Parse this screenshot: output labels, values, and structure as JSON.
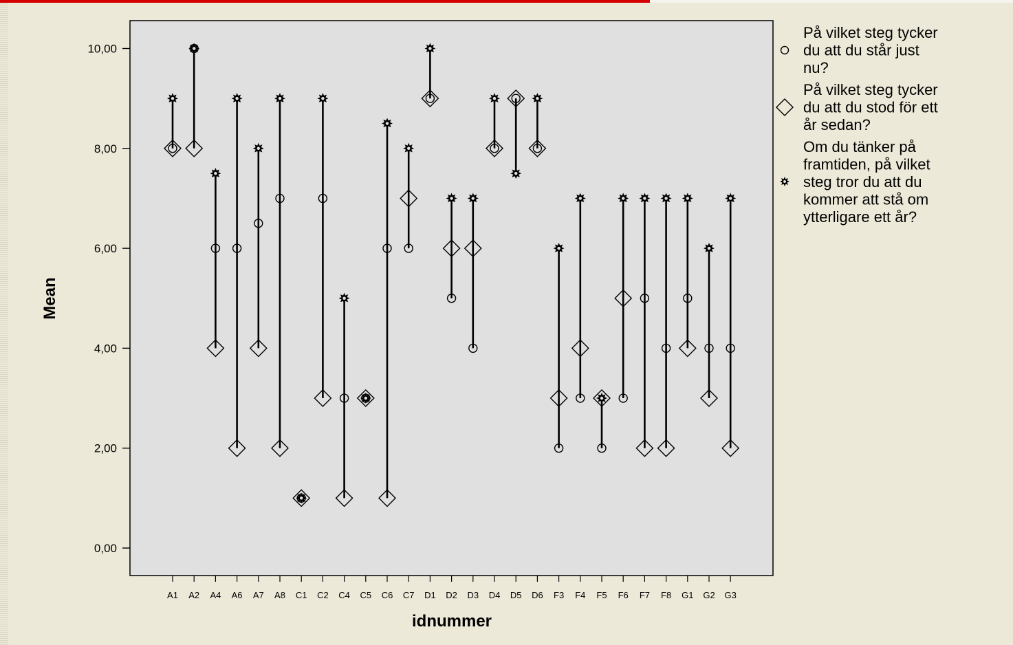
{
  "chart_data": {
    "type": "scatter",
    "xlabel": "idnummer",
    "ylabel": "Mean",
    "ylim": [
      0,
      10
    ],
    "y_ticks": [
      "0,00",
      "2,00",
      "4,00",
      "6,00",
      "8,00",
      "10,00"
    ],
    "grid": false,
    "legend_position": "right",
    "categories": [
      "A1",
      "A2",
      "A4",
      "A6",
      "A7",
      "A8",
      "C1",
      "C2",
      "C4",
      "C5",
      "C6",
      "C7",
      "D1",
      "D2",
      "D3",
      "D4",
      "D5",
      "D6",
      "F3",
      "F4",
      "F5",
      "F6",
      "F7",
      "F8",
      "G1",
      "G2",
      "G3"
    ],
    "series": [
      {
        "name": "På vilket steg tycker du att du står just nu?",
        "marker": "circle",
        "legend_lines": [
          "På vilket steg tycker",
          "du att du står just",
          "nu?"
        ],
        "values": [
          8,
          10,
          6,
          6,
          6.5,
          7,
          1,
          7,
          3,
          3,
          6,
          6,
          9,
          5,
          4,
          8,
          9,
          8,
          2,
          3,
          2,
          3,
          5,
          4,
          5,
          4,
          4
        ]
      },
      {
        "name": "På vilket steg tycker du att du stod för ett år sedan?",
        "marker": "diamond",
        "legend_lines": [
          "På vilket steg tycker",
          "du att du stod för ett",
          "år sedan?"
        ],
        "values": [
          8,
          8,
          4,
          2,
          4,
          2,
          1,
          3,
          1,
          3,
          1,
          7,
          9,
          6,
          6,
          8,
          9,
          8,
          3,
          4,
          3,
          5,
          2,
          2,
          4,
          3,
          2
        ]
      },
      {
        "name": "Om du tänker på framtiden, på vilket steg tror du att du kommer att stå om ytterligare ett år?",
        "marker": "star",
        "legend_lines": [
          "Om du tänker på",
          "framtiden, på vilket",
          "steg tror du att du",
          "kommer att stå om",
          "ytterligare ett år?"
        ],
        "values": [
          9,
          10,
          7.5,
          9,
          8,
          9,
          1,
          9,
          5,
          3,
          8.5,
          8,
          10,
          7,
          7,
          9,
          7.5,
          9,
          6,
          7,
          3,
          7,
          7,
          7,
          7,
          6,
          7
        ]
      }
    ]
  }
}
